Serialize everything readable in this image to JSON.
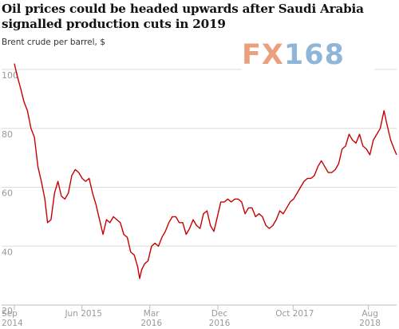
{
  "title": "Oil prices could be headed upwards after Saudi Arabia signalled production cuts in 2019",
  "subtitle": "Brent crude per barrel, $",
  "watermark": {
    "fx": "FX",
    "num": "168"
  },
  "chart_data": {
    "type": "line",
    "title": "Oil prices could be headed upwards after Saudi Arabia signalled production cuts in 2019",
    "ylabel": "Brent crude per barrel, $",
    "xlabel": "",
    "ylim": [
      20,
      100
    ],
    "xlim": [
      "2014-09-01",
      "2018-11-23"
    ],
    "yticks": [
      100,
      80,
      60,
      40,
      20
    ],
    "xticks": [
      {
        "date": "2014-09-01",
        "label": [
          "Sep",
          "2014"
        ]
      },
      {
        "date": "2015-06-01",
        "label": [
          "Jun 2015"
        ]
      },
      {
        "date": "2016-03-01",
        "label": [
          "Mar",
          "2016"
        ]
      },
      {
        "date": "2016-12-01",
        "label": [
          "Dec",
          "2016"
        ]
      },
      {
        "date": "2017-10-01",
        "label": [
          "Oct 2017"
        ]
      },
      {
        "date": "2018-08-01",
        "label": [
          "Aug",
          "2018"
        ]
      }
    ],
    "grid": true,
    "line_color": "#c70000",
    "series": [
      {
        "x": [
          "2014-09-01",
          "2014-09-12",
          "2014-09-25",
          "2014-10-10",
          "2014-10-24",
          "2014-11-07",
          "2014-11-21",
          "2014-12-05",
          "2014-12-19",
          "2015-01-02",
          "2015-01-13",
          "2015-01-27",
          "2015-02-10",
          "2015-02-24",
          "2015-03-10",
          "2015-03-24",
          "2015-04-07",
          "2015-04-21",
          "2015-05-05",
          "2015-05-19",
          "2015-06-02",
          "2015-06-16",
          "2015-06-30",
          "2015-07-14",
          "2015-07-28",
          "2015-08-11",
          "2015-08-25",
          "2015-09-08",
          "2015-09-22",
          "2015-10-06",
          "2015-10-20",
          "2015-11-03",
          "2015-11-17",
          "2015-12-01",
          "2015-12-15",
          "2015-12-29",
          "2016-01-12",
          "2016-01-20",
          "2016-01-28",
          "2016-02-09",
          "2016-02-23",
          "2016-03-08",
          "2016-03-22",
          "2016-04-05",
          "2016-04-19",
          "2016-05-03",
          "2016-05-17",
          "2016-05-31",
          "2016-06-14",
          "2016-06-28",
          "2016-07-12",
          "2016-07-26",
          "2016-08-09",
          "2016-08-23",
          "2016-09-06",
          "2016-09-20",
          "2016-10-04",
          "2016-10-18",
          "2016-11-01",
          "2016-11-15",
          "2016-11-29",
          "2016-12-13",
          "2016-12-27",
          "2017-01-10",
          "2017-01-24",
          "2017-02-07",
          "2017-02-21",
          "2017-03-07",
          "2017-03-21",
          "2017-04-04",
          "2017-04-18",
          "2017-05-02",
          "2017-05-16",
          "2017-05-30",
          "2017-06-13",
          "2017-06-27",
          "2017-07-11",
          "2017-07-25",
          "2017-08-08",
          "2017-08-22",
          "2017-09-05",
          "2017-09-19",
          "2017-10-03",
          "2017-10-17",
          "2017-10-31",
          "2017-11-14",
          "2017-11-28",
          "2017-12-12",
          "2017-12-26",
          "2018-01-09",
          "2018-01-23",
          "2018-02-06",
          "2018-02-20",
          "2018-03-06",
          "2018-03-20",
          "2018-04-03",
          "2018-04-17",
          "2018-05-01",
          "2018-05-15",
          "2018-05-29",
          "2018-06-12",
          "2018-06-26",
          "2018-07-10",
          "2018-07-24",
          "2018-08-07",
          "2018-08-21",
          "2018-09-04",
          "2018-09-18",
          "2018-10-03",
          "2018-10-16",
          "2018-10-30",
          "2018-11-13",
          "2018-11-23"
        ],
        "y": [
          102,
          98,
          94,
          89,
          86,
          80,
          77,
          67,
          62,
          56,
          48,
          49,
          58,
          62,
          57,
          56,
          58,
          64,
          66,
          65,
          63,
          62,
          63,
          58,
          54,
          49,
          44,
          49,
          48,
          50,
          49,
          48,
          44,
          43,
          38,
          37,
          33,
          29,
          32,
          34,
          35,
          40,
          41,
          40,
          43,
          45,
          48,
          50,
          50,
          48,
          48,
          44,
          46,
          49,
          47,
          46,
          51,
          52,
          47,
          45,
          50,
          55,
          55,
          56,
          55,
          56,
          56,
          55,
          51,
          53,
          53,
          50,
          51,
          50,
          47,
          46,
          47,
          49,
          52,
          51,
          53,
          55,
          56,
          58,
          60,
          62,
          63,
          63,
          64,
          67,
          69,
          67,
          65,
          65,
          66,
          68,
          73,
          74,
          78,
          76,
          75,
          78,
          74,
          73,
          71,
          76,
          78,
          80,
          86,
          81,
          76,
          73,
          71
        ]
      }
    ]
  }
}
